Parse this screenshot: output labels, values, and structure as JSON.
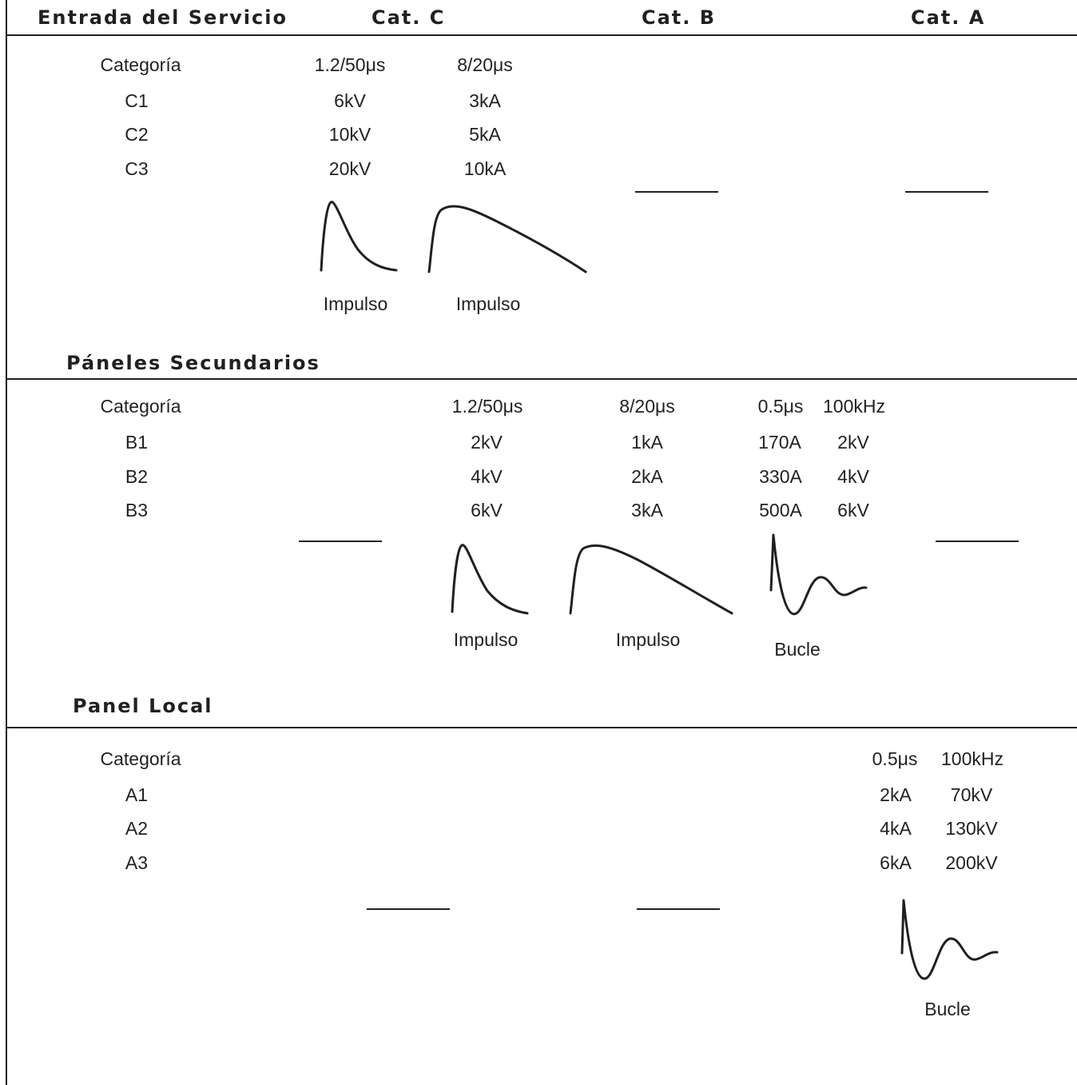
{
  "header": {
    "service_entrance": "Entrada del Servicio",
    "cat_c": "Cat. C",
    "cat_b": "Cat. B",
    "cat_a": "Cat. A"
  },
  "section_c": {
    "row_label": "Categoría",
    "col1_header": "1.2/50μs",
    "col2_header": "8/20μs",
    "rows": [
      {
        "name": "C1",
        "v1": "6kV",
        "v2": "3kA"
      },
      {
        "name": "C2",
        "v1": "10kV",
        "v2": "5kA"
      },
      {
        "name": "C3",
        "v1": "20kV",
        "v2": "10kA"
      }
    ],
    "wave1_label": "Impulso",
    "wave2_label": "Impulso"
  },
  "section_b": {
    "title": "Páneles Secundarios",
    "row_label": "Categoría",
    "col1_header": "1.2/50μs",
    "col2_header": "8/20μs",
    "col3_header_a": "0.5μs",
    "col3_header_b": "100kHz",
    "rows": [
      {
        "name": "B1",
        "v1": "2kV",
        "v2": "1kA",
        "v3a": "170A",
        "v3b": "2kV"
      },
      {
        "name": "B2",
        "v1": "4kV",
        "v2": "2kA",
        "v3a": "330A",
        "v3b": "4kV"
      },
      {
        "name": "B3",
        "v1": "6kV",
        "v2": "3kA",
        "v3a": "500A",
        "v3b": "6kV"
      }
    ],
    "wave1_label": "Impulso",
    "wave2_label": "Impulso",
    "wave3_label": "Bucle"
  },
  "section_a": {
    "title": "Panel Local",
    "row_label": "Categoría",
    "col_header_a": "0.5μs",
    "col_header_b": "100kHz",
    "rows": [
      {
        "name": "A1",
        "va": "2kA",
        "vb": "70kV"
      },
      {
        "name": "A2",
        "va": "4kA",
        "vb": "130kV"
      },
      {
        "name": "A3",
        "va": "6kA",
        "vb": "200kV"
      }
    ],
    "wave_label": "Bucle"
  }
}
